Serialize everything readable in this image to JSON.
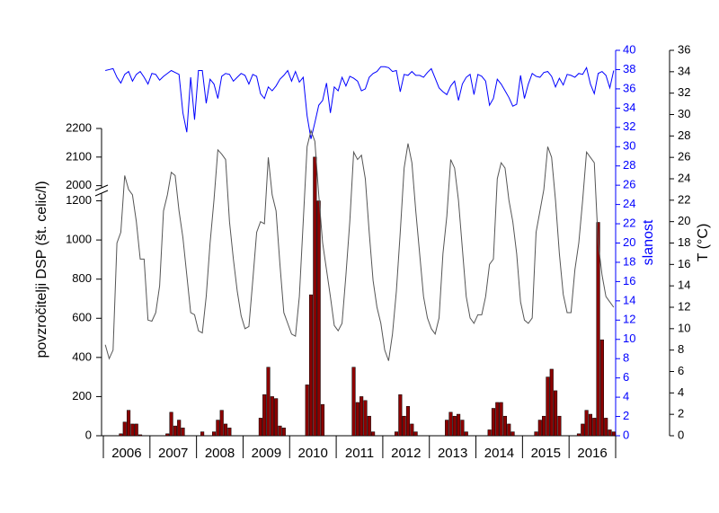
{
  "chart_data": {
    "type": "combo",
    "categories": [
      null,
      null,
      null,
      null,
      null,
      "2006",
      null,
      null,
      null,
      null,
      null,
      null,
      null,
      null,
      null,
      null,
      null,
      "2007",
      null,
      null,
      null,
      null,
      null,
      null,
      null,
      null,
      null,
      null,
      null,
      "2008",
      null,
      null,
      null,
      null,
      null,
      null,
      null,
      null,
      null,
      null,
      null,
      "2009",
      null,
      null,
      null,
      null,
      null,
      null,
      null,
      null,
      null,
      null,
      null,
      "2010",
      null,
      null,
      null,
      null,
      null,
      null,
      null,
      null,
      null,
      null,
      null,
      "2011",
      null,
      null,
      null,
      null,
      null,
      null,
      null,
      null,
      null,
      null,
      null,
      "2012",
      null,
      null,
      null,
      null,
      null,
      null,
      null,
      null,
      null,
      null,
      null,
      "2013",
      null,
      null,
      null,
      null,
      null,
      null,
      null,
      null,
      null,
      null,
      null,
      "2014",
      null,
      null,
      null,
      null,
      null,
      null,
      null,
      null,
      null,
      null,
      null,
      "2015",
      null,
      null,
      null,
      null,
      null,
      null,
      null,
      null,
      null,
      null,
      null,
      "2016",
      null,
      null,
      null,
      null,
      null,
      null
    ],
    "ylabel": "povzročitelji DSP (št. celic/l)",
    "ylim": [
      0,
      2200
    ],
    "y_break": [
      1230,
      1980
    ],
    "yticks": [
      0,
      200,
      400,
      600,
      800,
      1000,
      1200,
      2000,
      2100,
      2200
    ],
    "y2label": "slanost",
    "y2lim": [
      0,
      40
    ],
    "y2ticks": [
      0,
      2,
      4,
      6,
      8,
      10,
      12,
      14,
      16,
      18,
      20,
      22,
      24,
      26,
      28,
      30,
      32,
      34,
      36,
      38,
      40
    ],
    "y3label": "T (°C)",
    "y3lim": [
      0,
      36
    ],
    "y3ticks": [
      0,
      2,
      4,
      6,
      8,
      10,
      12,
      14,
      16,
      18,
      20,
      22,
      24,
      26,
      28,
      30,
      32,
      34,
      36
    ],
    "series": [
      {
        "type": "bar",
        "axis": "y",
        "color": "#8b0000",
        "values": [
          0,
          0,
          0,
          0,
          10,
          70,
          130,
          60,
          60,
          5,
          0,
          0,
          0,
          0,
          0,
          0,
          10,
          120,
          50,
          80,
          40,
          0,
          0,
          0,
          0,
          20,
          0,
          0,
          20,
          80,
          130,
          60,
          40,
          0,
          0,
          0,
          0,
          0,
          0,
          0,
          90,
          210,
          350,
          200,
          190,
          50,
          40,
          0,
          0,
          0,
          0,
          0,
          260,
          720,
          2100,
          1200,
          160,
          0,
          0,
          0,
          0,
          0,
          0,
          0,
          350,
          170,
          200,
          180,
          100,
          20,
          0,
          0,
          0,
          0,
          0,
          20,
          210,
          100,
          150,
          60,
          20,
          0,
          0,
          0,
          0,
          0,
          0,
          0,
          80,
          120,
          100,
          110,
          80,
          20,
          0,
          0,
          0,
          0,
          0,
          30,
          140,
          170,
          170,
          100,
          60,
          20,
          0,
          0,
          0,
          0,
          0,
          20,
          80,
          100,
          300,
          340,
          230,
          100,
          0,
          0,
          0,
          0,
          10,
          60,
          130,
          110,
          90,
          1090,
          490,
          90,
          30,
          20
        ]
      },
      {
        "type": "line",
        "axis": "y2",
        "color": "#0000ff",
        "values": [
          37.9,
          38,
          38.1,
          37.2,
          36.6,
          37.5,
          37.8,
          36.8,
          37.5,
          37.8,
          37.2,
          36.5,
          37.6,
          37.5,
          36.9,
          37.3,
          37.6,
          37.9,
          37.7,
          37.5,
          33.5,
          31.5,
          37.2,
          32.8,
          37.9,
          37.9,
          34.5,
          37,
          36.5,
          35,
          37.3,
          37.6,
          37.5,
          36.8,
          37.2,
          37.6,
          37.4,
          36.5,
          37.5,
          37.3,
          35.5,
          35,
          36.2,
          35.8,
          36.3,
          37,
          37.4,
          37.9,
          36.8,
          37.8,
          36.7,
          37.2,
          33.2,
          30.8,
          32.5,
          34.3,
          34.8,
          36.6,
          33.5,
          36.2,
          35.8,
          37.2,
          36.3,
          37.3,
          37.1,
          36.8,
          35.8,
          36,
          37.2,
          37.6,
          37.8,
          38.3,
          38.3,
          38.2,
          37.8,
          37.9,
          35.7,
          37.5,
          37.4,
          37.8,
          37.4,
          37.4,
          37.2,
          37.7,
          38.1,
          37.1,
          36.1,
          35.7,
          35.4,
          36.3,
          36.8,
          34.8,
          36.5,
          37.2,
          37.5,
          35.4,
          37.5,
          37.3,
          36.8,
          34.3,
          35,
          37,
          36.5,
          35.8,
          35.1,
          34.2,
          34.4,
          37.4,
          35,
          36.5,
          37.6,
          37.3,
          37.2,
          37.7,
          37.8,
          37.3,
          36.2,
          37.1,
          36.4,
          37.5,
          37.4,
          37.2,
          37.6,
          37.5,
          38.2,
          36.5,
          35.5,
          37.6,
          37.8,
          37.4,
          36.1,
          37.9
        ]
      },
      {
        "type": "line",
        "axis": "y3",
        "color": "#555555",
        "values": [
          8.5,
          7.2,
          8,
          18,
          19,
          24.3,
          23,
          22.5,
          20,
          16.5,
          16.5,
          10.8,
          10.7,
          11.5,
          14,
          21,
          22.5,
          24.6,
          24.3,
          21,
          18.5,
          15,
          11.5,
          11.3,
          9.8,
          9.6,
          13,
          18,
          22,
          26.7,
          26.3,
          25.8,
          20,
          16.5,
          13.5,
          11.2,
          10,
          10.2,
          14.5,
          19,
          20,
          19.8,
          26,
          22.5,
          21,
          16,
          11.5,
          10.5,
          9.5,
          9.3,
          13,
          20,
          27,
          28.5,
          27.5,
          22.5,
          18,
          15.5,
          13,
          10.3,
          9.8,
          10.5,
          15,
          20,
          26.5,
          25.8,
          26.2,
          24,
          19,
          14.5,
          12,
          10.5,
          8,
          7,
          9.5,
          13.5,
          19,
          25,
          27.3,
          25.5,
          21,
          17,
          13,
          11,
          10,
          9.5,
          11,
          17,
          20.5,
          25.8,
          25,
          22,
          17.5,
          13,
          11,
          10.5,
          11.3,
          11.3,
          13,
          16,
          16.5,
          24,
          25.5,
          25,
          22,
          20,
          17,
          12.5,
          10.8,
          10.5,
          11,
          19,
          21,
          23,
          27,
          26,
          22,
          17,
          13.2,
          11.5,
          11.5,
          15.5,
          18,
          22,
          26.5,
          26,
          25.5,
          18,
          15,
          13,
          12.5,
          12
        ]
      }
    ]
  }
}
